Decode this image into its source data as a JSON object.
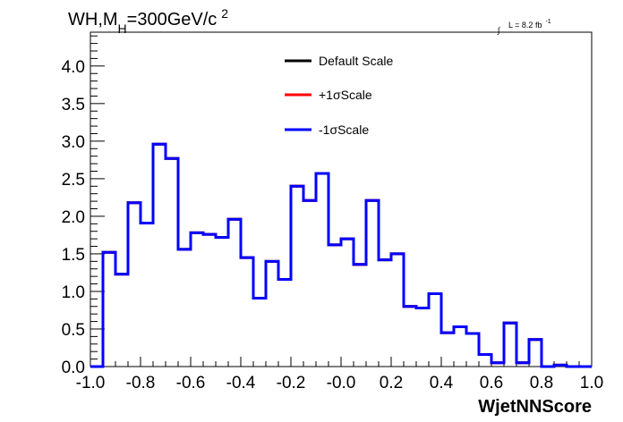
{
  "chart_data": {
    "type": "line",
    "style": "step-histogram",
    "title": "WH,M_H=300GeV/c^2",
    "title_parts": {
      "main": "WH,M",
      "sub": "H",
      "rest": "=300GeV/c",
      "sup": "2"
    },
    "annotation": {
      "integral": "∫",
      "text": "L = 8.2 fb",
      "sup": "-1"
    },
    "xlabel": "WjetNNScore",
    "ylabel": "",
    "xlim": [
      -1.0,
      1.0
    ],
    "ylim": [
      0.0,
      4.45
    ],
    "x_ticks": [
      "-1.0",
      "-0.8",
      "-0.6",
      "-0.4",
      "-0.2",
      "-0.0",
      "0.2",
      "0.4",
      "0.6",
      "0.8",
      "1.0"
    ],
    "y_ticks": [
      "0.0",
      "0.5",
      "1.0",
      "1.5",
      "2.0",
      "2.5",
      "3.0",
      "3.5",
      "4.0"
    ],
    "bin_edges": [
      -1.0,
      -0.95,
      -0.9,
      -0.85,
      -0.8,
      -0.75,
      -0.7,
      -0.65,
      -0.6,
      -0.55,
      -0.5,
      -0.45,
      -0.4,
      -0.35,
      -0.3,
      -0.25,
      -0.2,
      -0.15,
      -0.1,
      -0.05,
      0.0,
      0.05,
      0.1,
      0.15,
      0.2,
      0.25,
      0.3,
      0.35,
      0.4,
      0.45,
      0.5,
      0.55,
      0.6,
      0.65,
      0.7,
      0.75,
      0.8,
      0.85,
      0.9,
      0.95,
      1.0
    ],
    "series": [
      {
        "name": "Default Scale",
        "color": "#000000",
        "values": [
          0.0,
          1.52,
          1.23,
          2.18,
          1.91,
          2.96,
          2.77,
          1.56,
          1.78,
          1.76,
          1.72,
          1.96,
          1.45,
          0.91,
          1.4,
          1.16,
          2.4,
          2.21,
          2.57,
          1.62,
          1.7,
          1.36,
          2.21,
          1.42,
          1.5,
          0.8,
          0.78,
          0.97,
          0.45,
          0.53,
          0.44,
          0.16,
          0.05,
          0.58,
          0.05,
          0.36,
          0.0,
          0.02,
          0.0,
          0.0
        ]
      },
      {
        "name": "+1σScale",
        "color": "#ff0000",
        "values": [
          0.0,
          1.52,
          1.23,
          2.18,
          1.91,
          2.96,
          2.77,
          1.56,
          1.78,
          1.76,
          1.72,
          1.96,
          1.45,
          0.91,
          1.4,
          1.16,
          2.4,
          2.21,
          2.57,
          1.62,
          1.7,
          1.36,
          2.21,
          1.42,
          1.5,
          0.8,
          0.78,
          0.97,
          0.45,
          0.53,
          0.44,
          0.16,
          0.05,
          0.58,
          0.05,
          0.36,
          0.0,
          0.02,
          0.0,
          0.0
        ]
      },
      {
        "name": "-1σScale",
        "color": "#0000ff",
        "values": [
          0.0,
          1.52,
          1.23,
          2.18,
          1.91,
          2.96,
          2.77,
          1.56,
          1.78,
          1.76,
          1.72,
          1.96,
          1.45,
          0.91,
          1.4,
          1.16,
          2.4,
          2.21,
          2.57,
          1.62,
          1.7,
          1.36,
          2.21,
          1.42,
          1.5,
          0.8,
          0.78,
          0.97,
          0.45,
          0.53,
          0.44,
          0.16,
          0.05,
          0.58,
          0.05,
          0.36,
          0.0,
          0.02,
          0.0,
          0.0
        ]
      }
    ],
    "legend": {
      "placement": "top-center",
      "entries": [
        "Default Scale",
        "+1σScale",
        "-1σScale"
      ]
    },
    "grid": false
  }
}
